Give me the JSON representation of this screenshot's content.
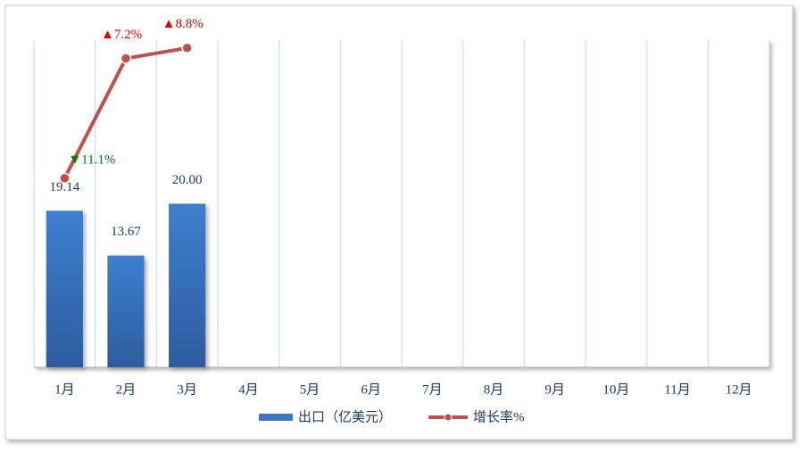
{
  "chart_data": {
    "type": "bar-line",
    "categories": [
      "1月",
      "2月",
      "3月",
      "4月",
      "5月",
      "6月",
      "7月",
      "8月",
      "9月",
      "10月",
      "11月",
      "12月"
    ],
    "series": [
      {
        "name": "出口（亿美元）",
        "type": "bar",
        "color": "#3b78c4",
        "values": [
          19.14,
          13.67,
          20.0,
          null,
          null,
          null,
          null,
          null,
          null,
          null,
          null,
          null
        ],
        "value_labels": [
          "19.14",
          "13.67",
          "20.00",
          null,
          null,
          null,
          null,
          null,
          null,
          null,
          null,
          null
        ]
      },
      {
        "name": "增长率%",
        "type": "line",
        "axis": "y2",
        "color": "#c0504d",
        "values": [
          -11.1,
          7.2,
          8.8,
          null,
          null,
          null,
          null,
          null,
          null,
          null,
          null,
          null
        ],
        "value_labels": [
          "▼11.1%",
          "▲7.2%",
          "▲8.8%",
          null,
          null,
          null,
          null,
          null,
          null,
          null,
          null,
          null
        ]
      }
    ],
    "up_color": "#e00000",
    "down_color": "#008000",
    "ylim": [
      0,
      40
    ],
    "y2lim": [
      -40,
      10
    ],
    "grid": true
  }
}
